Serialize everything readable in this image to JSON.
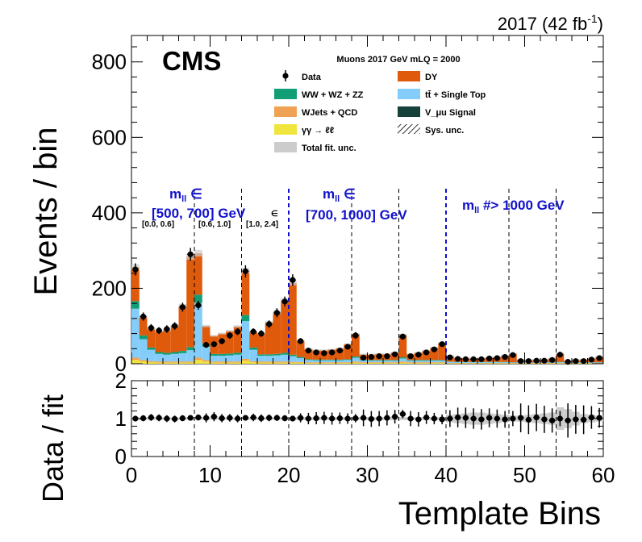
{
  "lumi_label": "2017 (42 fb",
  "lumi_sup": "-1",
  "lumi_close": ")",
  "cms_label": "CMS",
  "legend": {
    "title": "Muons 2017 GeV mLQ = 2000",
    "entries": [
      {
        "label": "Data",
        "kind": "data",
        "color": "#000000"
      },
      {
        "label": "DY",
        "kind": "box",
        "color": "#e05a0c"
      },
      {
        "label": "WW + WZ + ZZ",
        "kind": "box",
        "color": "#119e76"
      },
      {
        "label": "tt̄ + Single Top",
        "kind": "box",
        "color": "#84cdfa"
      },
      {
        "label": "WJets + QCD",
        "kind": "box",
        "color": "#f0a254"
      },
      {
        "label": "V_μu Signal",
        "kind": "box",
        "color": "#16403a"
      },
      {
        "label": "γγ → ℓℓ",
        "kind": "box",
        "color": "#efe53c"
      },
      {
        "label": "Sys. unc.",
        "kind": "hatch",
        "color": "#000000"
      },
      {
        "label": "Total fit. unc.",
        "kind": "box",
        "color": "#cccccc"
      }
    ]
  },
  "annotations": {
    "region1_line1": "m",
    "region1_sub": "ll",
    "region1_rest": " ∈",
    "region1_line2": "[500, 700] GeV",
    "region2_line1": "m",
    "region2_sub": "ll",
    "region2_rest": " ∈",
    "region2_line2": "[700, 1000] GeV",
    "region3_m": "m",
    "region3_sub": "ll",
    "region3_rest": " #> 1000 GeV",
    "sub_a": "[0.0, 0.6]",
    "sub_b": "[0.6, 1.0]",
    "sub_c": "[1.0, 2.4]",
    "sub_c_prefix": "∈"
  },
  "chart_data": [
    {
      "type": "bar",
      "stacked": true,
      "ylabel": "Events / bin",
      "ylim": [
        0,
        870
      ],
      "yticks": [
        0,
        200,
        400,
        600,
        800
      ],
      "xlim": [
        0,
        60
      ],
      "bin_edges_start": 0,
      "bin_width": 1,
      "dashed_lines_blue": [
        20,
        40
      ],
      "dashed_lines_black": [
        8,
        14,
        28,
        34,
        48,
        54
      ],
      "series": [
        {
          "name": "γγ → ℓℓ",
          "color": "#efe53c",
          "values": [
            10,
            6,
            4,
            3,
            3,
            3,
            3,
            3,
            10,
            6,
            3,
            3,
            3,
            3,
            8,
            4,
            3,
            3,
            3,
            3,
            3,
            3,
            2,
            2,
            2,
            2,
            2,
            2,
            3,
            2,
            2,
            2,
            2,
            2,
            3,
            2,
            2,
            2,
            2,
            2,
            1,
            1,
            1,
            1,
            1,
            1,
            1,
            1,
            1,
            1,
            1,
            1,
            1,
            1,
            1,
            1,
            1,
            1,
            1,
            1
          ]
        },
        {
          "name": "WJets + QCD",
          "color": "#f0a254",
          "values": [
            6,
            4,
            3,
            3,
            3,
            3,
            3,
            3,
            6,
            4,
            3,
            3,
            3,
            3,
            5,
            3,
            3,
            3,
            3,
            3,
            2,
            2,
            2,
            2,
            2,
            2,
            2,
            2,
            3,
            2,
            2,
            2,
            2,
            2,
            3,
            2,
            2,
            2,
            2,
            2,
            1,
            1,
            1,
            1,
            1,
            1,
            1,
            1,
            1,
            1,
            1,
            1,
            1,
            1,
            1,
            1,
            1,
            1,
            1,
            1
          ]
        },
        {
          "name": "tt̄ + Single Top",
          "color": "#84cdfa",
          "values": [
            130,
            55,
            30,
            20,
            18,
            20,
            22,
            30,
            145,
            35,
            15,
            15,
            16,
            18,
            100,
            30,
            15,
            15,
            16,
            18,
            15,
            10,
            6,
            5,
            5,
            5,
            5,
            6,
            10,
            5,
            4,
            4,
            4,
            4,
            8,
            4,
            4,
            4,
            4,
            4,
            3,
            2,
            2,
            2,
            2,
            2,
            2,
            2,
            1,
            1,
            1,
            1,
            1,
            1,
            2,
            1,
            1,
            1,
            1,
            1
          ]
        },
        {
          "name": "WW + WZ + ZZ",
          "color": "#119e76",
          "values": [
            20,
            10,
            6,
            5,
            5,
            5,
            6,
            8,
            22,
            8,
            5,
            5,
            5,
            5,
            16,
            6,
            4,
            4,
            4,
            5,
            4,
            3,
            2,
            2,
            2,
            2,
            2,
            2,
            3,
            2,
            2,
            2,
            2,
            2,
            3,
            2,
            2,
            2,
            2,
            2,
            1,
            1,
            1,
            1,
            1,
            1,
            1,
            1,
            1,
            1,
            1,
            1,
            1,
            1,
            1,
            1,
            1,
            1,
            1,
            1
          ]
        },
        {
          "name": "V_μu Signal",
          "color": "#16403a",
          "values": [
            0,
            0,
            0,
            0,
            0,
            0,
            0,
            0,
            0,
            0,
            0,
            0,
            0,
            0,
            0,
            0,
            0,
            0,
            0,
            0,
            0,
            0,
            0,
            0,
            0,
            0,
            0,
            0,
            0,
            0,
            0,
            0,
            0,
            0,
            0,
            0,
            0,
            0,
            0,
            0,
            0,
            0,
            0,
            0,
            0,
            0,
            0,
            0,
            0,
            0,
            0,
            0,
            0,
            0,
            0,
            0,
            0,
            0,
            0,
            0
          ]
        },
        {
          "name": "DY",
          "color": "#e05a0c",
          "values": [
            90,
            50,
            50,
            55,
            60,
            70,
            120,
            240,
            110,
            47,
            48,
            54,
            60,
            70,
            118,
            42,
            55,
            85,
            110,
            140,
            190,
            43,
            27,
            25,
            25,
            27,
            30,
            40,
            60,
            14,
            15,
            16,
            16,
            20,
            60,
            16,
            20,
            25,
            33,
            45,
            15,
            11,
            10,
            10,
            10,
            12,
            13,
            17,
            23,
            7,
            6,
            7,
            8,
            10,
            22,
            4,
            6,
            7,
            10,
            14
          ]
        }
      ]
    },
    {
      "type": "scatter",
      "name": "Data",
      "x_centers_start": 0.5,
      "values": [
        250,
        125,
        95,
        88,
        92,
        100,
        150,
        290,
        155,
        50,
        52,
        60,
        75,
        85,
        245,
        85,
        80,
        105,
        135,
        165,
        222,
        60,
        35,
        30,
        28,
        30,
        35,
        45,
        75,
        16,
        18,
        20,
        20,
        25,
        72,
        20,
        24,
        30,
        38,
        52,
        17,
        13,
        12,
        12,
        12,
        14,
        15,
        18,
        23,
        7,
        7,
        8,
        8,
        10,
        24,
        5,
        7,
        7,
        11,
        15
      ],
      "errors": [
        16,
        11,
        10,
        9,
        10,
        10,
        12,
        17,
        12,
        7,
        7,
        8,
        9,
        9,
        16,
        9,
        9,
        10,
        12,
        13,
        15,
        8,
        6,
        5,
        5,
        5,
        6,
        7,
        9,
        4,
        4,
        4,
        4,
        5,
        8,
        4,
        5,
        5,
        6,
        7,
        4,
        4,
        3,
        3,
        3,
        4,
        4,
        4,
        5,
        3,
        3,
        3,
        3,
        3,
        5,
        2,
        3,
        3,
        3,
        4
      ]
    },
    {
      "type": "scatter",
      "name": "Data / fit",
      "xlabel": "Template Bins",
      "ylabel": "Data / fit",
      "ylim": [
        0,
        2
      ],
      "yticks": [
        0,
        1,
        2
      ],
      "xticks": [
        0,
        10,
        20,
        30,
        40,
        50,
        60
      ],
      "x_centers_start": 0.5,
      "values": [
        1.0,
        1.01,
        1.03,
        1.02,
        1.0,
        0.99,
        1.01,
        1.02,
        1.03,
        1.02,
        1.05,
        1.01,
        1.02,
        1.0,
        1.02,
        1.03,
        1.01,
        1.02,
        1.02,
        1.01,
        1.0,
        1.02,
        1.0,
        1.01,
        1.02,
        1.0,
        1.01,
        1.0,
        1.01,
        1.02,
        0.99,
        1.0,
        1.02,
        1.05,
        1.12,
        1.0,
        0.98,
        1.03,
        1.0,
        0.98,
        1.0,
        1.03,
        1.02,
        1.0,
        0.98,
        1.02,
        1.0,
        0.98,
        1.0,
        1.02,
        0.97,
        1.03,
        0.98,
        0.95,
        1.0,
        0.95,
        0.98,
        0.97,
        1.03,
        1.02
      ],
      "errors": [
        0.07,
        0.08,
        0.09,
        0.09,
        0.09,
        0.09,
        0.08,
        0.06,
        0.08,
        0.12,
        0.12,
        0.11,
        0.1,
        0.1,
        0.06,
        0.1,
        0.1,
        0.09,
        0.08,
        0.08,
        0.07,
        0.12,
        0.15,
        0.16,
        0.16,
        0.16,
        0.15,
        0.14,
        0.11,
        0.22,
        0.21,
        0.2,
        0.2,
        0.18,
        0.11,
        0.2,
        0.19,
        0.17,
        0.15,
        0.13,
        0.22,
        0.26,
        0.27,
        0.27,
        0.27,
        0.25,
        0.24,
        0.22,
        0.2,
        0.38,
        0.38,
        0.36,
        0.36,
        0.32,
        0.2,
        0.45,
        0.38,
        0.38,
        0.3,
        0.26
      ],
      "fit_unc": [
        0.03,
        0.03,
        0.03,
        0.03,
        0.03,
        0.03,
        0.03,
        0.03,
        0.03,
        0.03,
        0.03,
        0.03,
        0.03,
        0.03,
        0.03,
        0.03,
        0.03,
        0.03,
        0.03,
        0.03,
        0.04,
        0.04,
        0.04,
        0.04,
        0.04,
        0.04,
        0.04,
        0.04,
        0.04,
        0.04,
        0.04,
        0.04,
        0.04,
        0.04,
        0.04,
        0.04,
        0.04,
        0.04,
        0.04,
        0.04,
        0.1,
        0.12,
        0.14,
        0.16,
        0.16,
        0.14,
        0.12,
        0.1,
        0.08,
        0.08,
        0.1,
        0.12,
        0.14,
        0.16,
        0.3,
        0.25,
        0.18,
        0.12,
        0.1,
        0.08
      ]
    }
  ]
}
